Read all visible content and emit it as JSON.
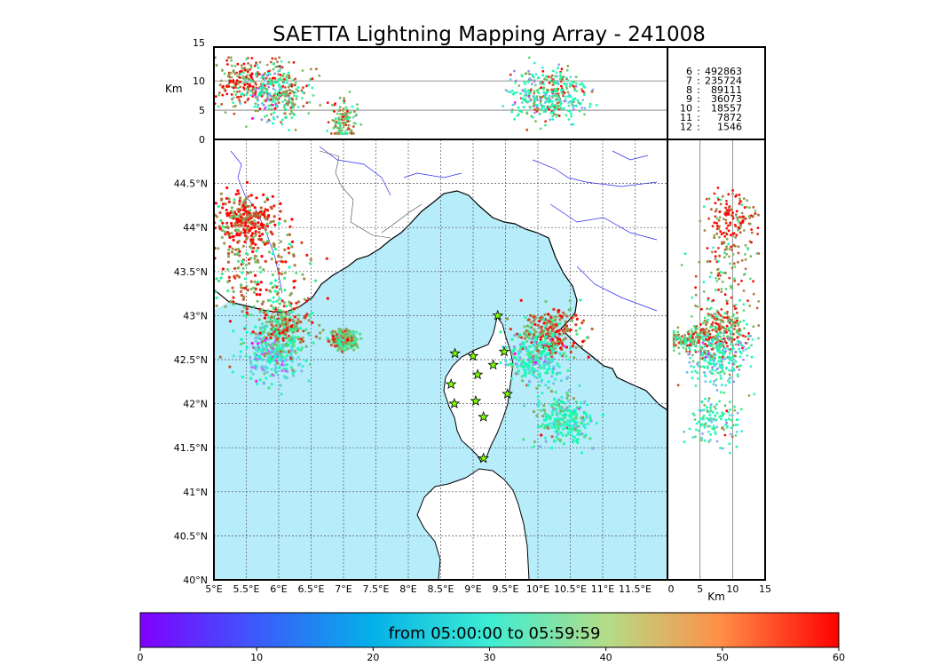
{
  "title": "SAETTA Lightning Mapping Array - 241008",
  "chart_data": {
    "type": "scatter",
    "title": "SAETTA Lightning Mapping Array - 241008",
    "map": {
      "lon_range": [
        5,
        12
      ],
      "lat_range": [
        40,
        45
      ],
      "lon_ticks": [
        "5°E",
        "5.5°E",
        "6°E",
        "6.5°E",
        "7°E",
        "7.5°E",
        "8°E",
        "8.5°E",
        "9°E",
        "9.5°E",
        "10°E",
        "10.5°E",
        "11°E",
        "11.5°E"
      ],
      "lat_ticks": [
        "40°N",
        "40.5°N",
        "41°N",
        "41.5°N",
        "42°N",
        "42.5°N",
        "43°N",
        "43.5°N",
        "44°N",
        "44.5°N"
      ],
      "grid": true,
      "sea_color": "#b7ecfb"
    },
    "altitude_top": {
      "ylabel": "Km",
      "ylim": [
        0,
        15
      ],
      "yticks": [
        "0",
        "5",
        "10",
        "15"
      ]
    },
    "altitude_side": {
      "xlabel": "Km",
      "xlim": [
        0,
        15
      ],
      "xticks": [
        "0",
        "5",
        "10",
        "15"
      ]
    },
    "station_counts": [
      {
        "stations": "6",
        "count": "492863",
        "color": "#000000"
      },
      {
        "stations": "7",
        "count": "235724",
        "color": "#ff0000"
      },
      {
        "stations": "8",
        "count": "89111",
        "color": "#000000"
      },
      {
        "stations": "9",
        "count": "36073",
        "color": "#000000"
      },
      {
        "stations": "10",
        "count": "18557",
        "color": "#000000"
      },
      {
        "stations": "11",
        "count": "7872",
        "color": "#000000"
      },
      {
        "stations": "12",
        "count": "1546",
        "color": "#000000"
      }
    ],
    "stations_lonlat": [
      [
        9.38,
        43.0
      ],
      [
        8.72,
        42.57
      ],
      [
        9.0,
        42.54
      ],
      [
        9.48,
        42.59
      ],
      [
        9.31,
        42.44
      ],
      [
        9.07,
        42.33
      ],
      [
        8.66,
        42.22
      ],
      [
        9.53,
        42.11
      ],
      [
        8.71,
        42.0
      ],
      [
        9.04,
        42.03
      ],
      [
        9.16,
        41.85
      ],
      [
        9.16,
        41.38
      ]
    ],
    "clusters": [
      {
        "lon": 5.6,
        "lat": 43.5,
        "alt": 9,
        "minutes": 48
      },
      {
        "lon": 5.5,
        "lat": 44.1,
        "alt": 10,
        "minutes": 55
      },
      {
        "lon": 5.9,
        "lat": 42.55,
        "alt": 8,
        "minutes": 20
      },
      {
        "lon": 6.1,
        "lat": 42.85,
        "alt": 8,
        "minutes": 45
      },
      {
        "lon": 7.0,
        "lat": 42.73,
        "alt": 3,
        "minutes": 45
      },
      {
        "lon": 10.2,
        "lat": 42.8,
        "alt": 8,
        "minutes": 50
      },
      {
        "lon": 9.95,
        "lat": 42.5,
        "alt": 7,
        "minutes": 25
      },
      {
        "lon": 10.4,
        "lat": 41.8,
        "alt": 7,
        "minutes": 30
      }
    ],
    "colorbar": {
      "label": "from 05:00:00 to 05:59:59",
      "range": [
        0,
        60
      ],
      "ticks": [
        "0",
        "10",
        "20",
        "30",
        "40",
        "50",
        "60"
      ],
      "colormap": "rainbow"
    }
  }
}
